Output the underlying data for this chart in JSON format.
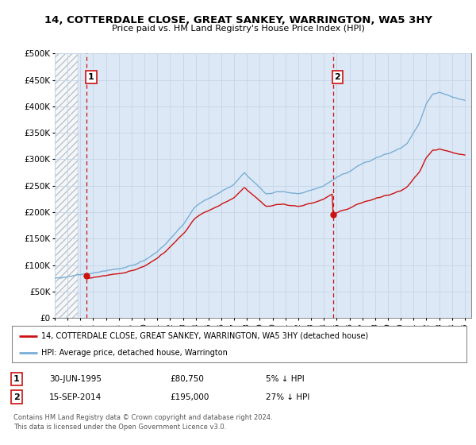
{
  "title": "14, COTTERDALE CLOSE, GREAT SANKEY, WARRINGTON, WA5 3HY",
  "subtitle": "Price paid vs. HM Land Registry's House Price Index (HPI)",
  "ylim": [
    0,
    500000
  ],
  "yticks": [
    0,
    50000,
    100000,
    150000,
    200000,
    250000,
    300000,
    350000,
    400000,
    450000,
    500000
  ],
  "ytick_labels": [
    "£0",
    "£50K",
    "£100K",
    "£150K",
    "£200K",
    "£250K",
    "£300K",
    "£350K",
    "£400K",
    "£450K",
    "£500K"
  ],
  "xlim_start": 1993.0,
  "xlim_end": 2025.5,
  "xticks": [
    1993,
    1994,
    1995,
    1996,
    1997,
    1998,
    1999,
    2000,
    2001,
    2002,
    2003,
    2004,
    2005,
    2006,
    2007,
    2008,
    2009,
    2010,
    2011,
    2012,
    2013,
    2014,
    2015,
    2016,
    2017,
    2018,
    2019,
    2020,
    2021,
    2022,
    2023,
    2024,
    2025
  ],
  "grid_color": "#c8d8e8",
  "background_color": "#ffffff",
  "plot_bg_color": "#dce8f5",
  "hpi_color": "#7aaed6",
  "price_color": "#cc1111",
  "vline_color": "#cc1111",
  "sale1_x": 1995.5,
  "sale1_y": 80750,
  "sale2_x": 2014.71,
  "sale2_y": 195000,
  "legend_property": "14, COTTERDALE CLOSE, GREAT SANKEY, WARRINGTON, WA5 3HY (detached house)",
  "legend_hpi": "HPI: Average price, detached house, Warrington",
  "footer_line1": "Contains HM Land Registry data © Crown copyright and database right 2024.",
  "footer_line2": "This data is licensed under the Open Government Licence v3.0.",
  "note1_num": "1",
  "note1_date": "30-JUN-1995",
  "note1_price": "£80,750",
  "note1_hpi": "5% ↓ HPI",
  "note2_num": "2",
  "note2_date": "15-SEP-2014",
  "note2_price": "£195,000",
  "note2_hpi": "27% ↓ HPI"
}
